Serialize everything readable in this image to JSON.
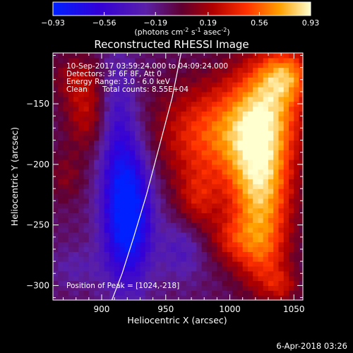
{
  "chart_data": {
    "type": "heatmap",
    "title": "Reconstructed RHESSI Image",
    "xlabel": "Heliocentric X (arcsec)",
    "ylabel": "Heliocentric Y (arcsec)",
    "xlim": [
      862,
      1057
    ],
    "ylim": [
      -312,
      -108
    ],
    "xticks": [
      900,
      950,
      1000,
      1050
    ],
    "yticks": [
      -150,
      -200,
      -250,
      -300
    ],
    "grid": false,
    "colorbar": {
      "min": -0.93,
      "max": 0.93,
      "ticks": [
        "-0.93",
        "-0.56",
        "-0.19",
        "0.19",
        "0.56",
        "0.93"
      ],
      "units_parts": [
        "(photons cm",
        "-2",
        " s",
        "-1",
        " asec",
        "-2",
        ")"
      ]
    },
    "annotations": {
      "line1": "10-Sep-2017 03:59:24.000 to 04:09:24.000",
      "line2": "Detectors: 3F 6F 8F, Att 0",
      "line3": "Energy Range: 3.0 - 6.0 keV",
      "line4_left": "Clean",
      "line4_right": "Total counts: 8.55E+04",
      "peak": "Position of Peak = [1024,-218]"
    },
    "peak": {
      "x": 1024,
      "y": -218,
      "value": 0.93
    },
    "limb_curve": [
      [
        908,
        -312
      ],
      [
        916,
        -290
      ],
      [
        925,
        -260
      ],
      [
        935,
        -225
      ],
      [
        945,
        -185
      ],
      [
        955,
        -145
      ],
      [
        962,
        -108
      ]
    ],
    "emission_components": [
      {
        "x": 1024,
        "y": -218,
        "sx": 18,
        "sy": 40,
        "amp": 0.85
      },
      {
        "x": 1030,
        "y": -150,
        "sx": 22,
        "sy": 30,
        "amp": 0.62
      },
      {
        "x": 985,
        "y": -175,
        "sx": 30,
        "sy": 30,
        "amp": 0.6
      },
      {
        "x": 1045,
        "y": -125,
        "sx": 15,
        "sy": 15,
        "amp": 0.5
      },
      {
        "x": 975,
        "y": -230,
        "sx": 12,
        "sy": 18,
        "amp": 0.35
      },
      {
        "x": 1000,
        "y": -262,
        "sx": 12,
        "sy": 14,
        "amp": 0.28
      },
      {
        "x": 1025,
        "y": -275,
        "sx": 14,
        "sy": 22,
        "amp": 0.35
      },
      {
        "x": 1040,
        "y": -300,
        "sx": 10,
        "sy": 10,
        "amp": 0.3
      },
      {
        "x": 888,
        "y": -158,
        "sx": 12,
        "sy": 22,
        "amp": 0.35
      },
      {
        "x": 880,
        "y": -128,
        "sx": 14,
        "sy": 14,
        "amp": 0.25
      },
      {
        "x": 872,
        "y": -210,
        "sx": 10,
        "sy": 15,
        "amp": 0.2
      },
      {
        "x": 920,
        "y": -240,
        "sx": 13,
        "sy": 40,
        "amp": -0.95
      },
      {
        "x": 912,
        "y": -160,
        "sx": 10,
        "sy": 40,
        "amp": -0.3
      },
      {
        "x": 962,
        "y": -270,
        "sx": 12,
        "sy": 18,
        "amp": -0.25
      },
      {
        "x": 880,
        "y": -285,
        "sx": 15,
        "sy": 12,
        "amp": -0.15
      }
    ]
  },
  "footer": {
    "date": "6-Apr-2018 03:26"
  }
}
